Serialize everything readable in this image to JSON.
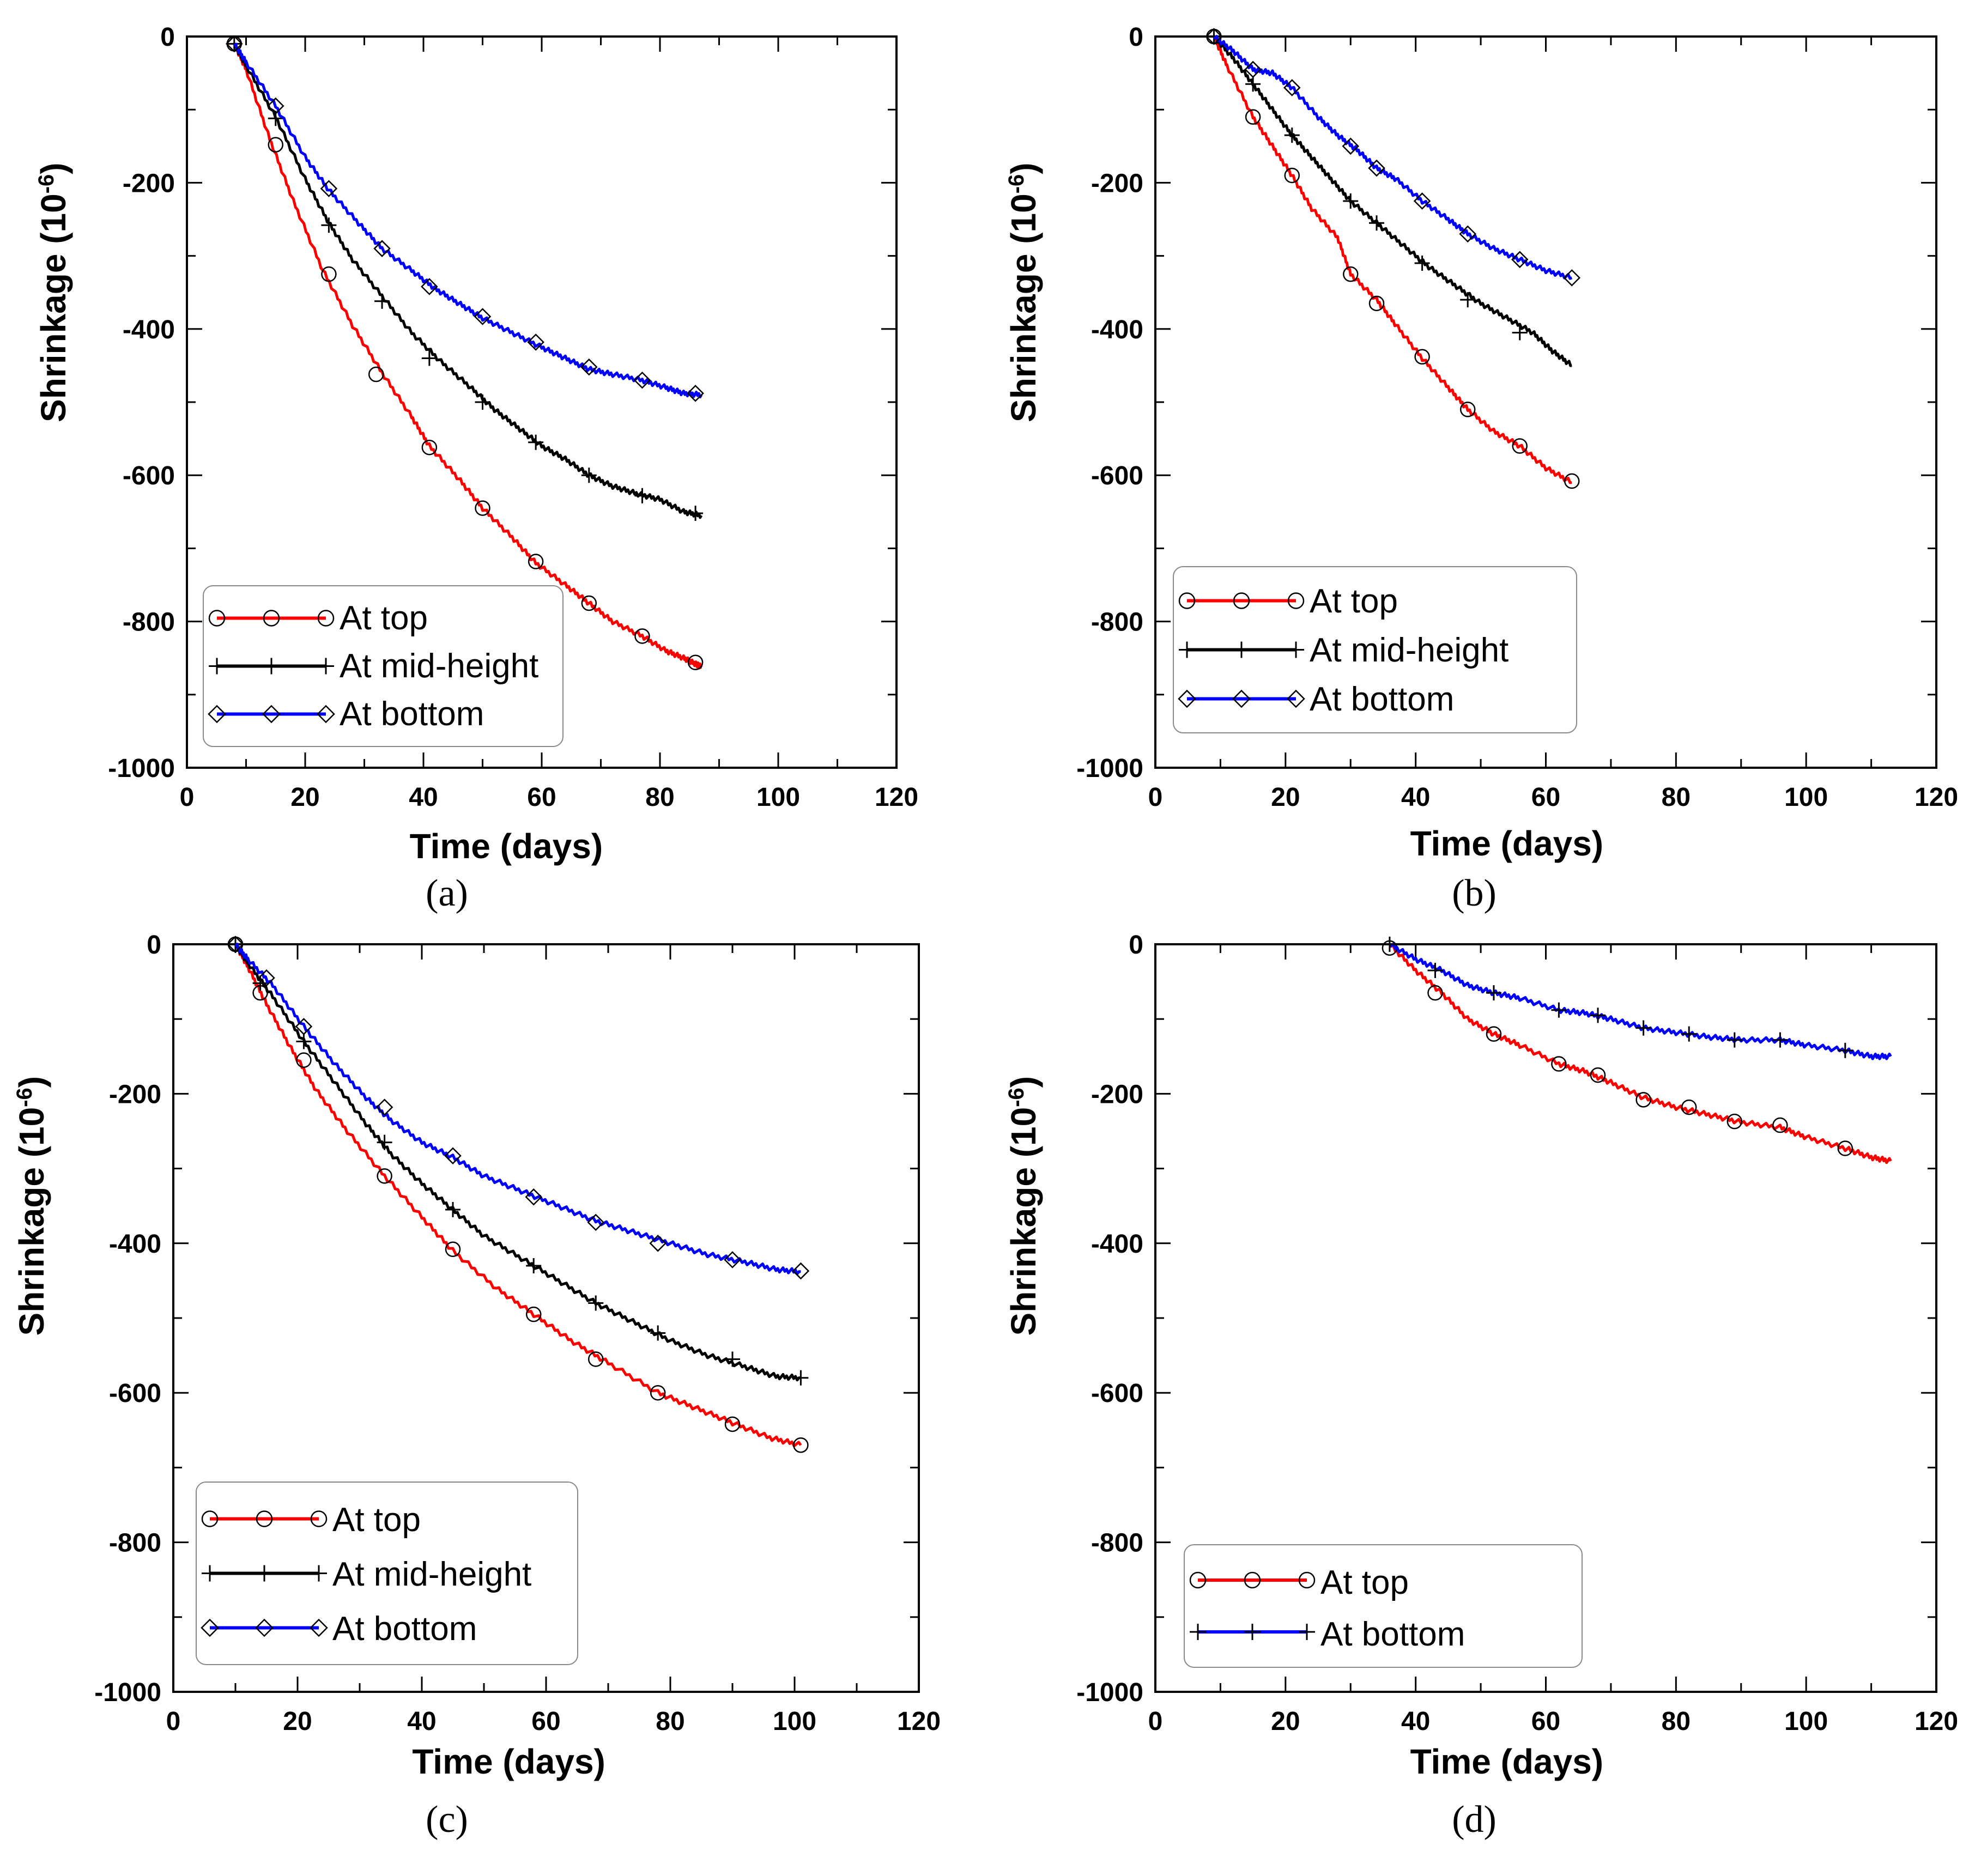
{
  "chart_data": [
    {
      "panel": "(a)",
      "type": "line",
      "xlabel": "Time (days)",
      "ylabel": "Shrinkage (10",
      "ylabel_sup": "-6",
      "ylabel_suffix": ")",
      "xlim": [
        0,
        120
      ],
      "ylim": [
        -1000,
        0
      ],
      "xticks": [
        0,
        20,
        40,
        60,
        80,
        100,
        120
      ],
      "yticks": [
        0,
        -200,
        -400,
        -600,
        -800,
        -1000
      ],
      "grid": false,
      "legend_position": "bottom-left",
      "series": [
        {
          "name": "At top",
          "color": "#ff0000",
          "marker": "circle",
          "x": [
            8,
            10,
            14,
            18,
            23,
            28,
            33,
            38,
            41,
            46,
            50,
            55,
            59,
            64,
            68,
            72,
            77,
            81,
            84,
            86,
            87
          ],
          "y": [
            -10,
            -45,
            -140,
            -225,
            -320,
            -395,
            -460,
            -520,
            -560,
            -605,
            -645,
            -685,
            -720,
            -750,
            -775,
            -800,
            -820,
            -840,
            -850,
            -858,
            -862
          ],
          "marker_x": [
            8,
            15,
            24,
            32,
            41,
            50,
            59,
            68,
            77,
            86
          ],
          "marker_y": [
            -10,
            -148,
            -325,
            -462,
            -562,
            -645,
            -718,
            -775,
            -820,
            -856
          ]
        },
        {
          "name": "At mid-height",
          "color": "#000000",
          "marker": "plus",
          "x": [
            8,
            10,
            15,
            20,
            24,
            28,
            33,
            38,
            43,
            48,
            52,
            56,
            60,
            64,
            68,
            72,
            76,
            80,
            84,
            87
          ],
          "y": [
            -10,
            -40,
            -110,
            -195,
            -255,
            -305,
            -355,
            -405,
            -445,
            -480,
            -510,
            -535,
            -560,
            -578,
            -600,
            -615,
            -625,
            -633,
            -650,
            -655
          ],
          "marker_x": [
            8,
            15,
            24,
            33,
            41,
            50,
            59,
            68,
            77,
            86
          ],
          "marker_y": [
            -10,
            -112,
            -258,
            -362,
            -440,
            -500,
            -555,
            -600,
            -628,
            -652
          ]
        },
        {
          "name": "At bottom",
          "color": "#0000ff",
          "marker": "diamond",
          "x": [
            8,
            10,
            15,
            20,
            24,
            29,
            33,
            38,
            42,
            46,
            50,
            55,
            60,
            64,
            68,
            72,
            77,
            81,
            84,
            87
          ],
          "y": [
            -10,
            -35,
            -95,
            -165,
            -210,
            -255,
            -290,
            -320,
            -345,
            -365,
            -385,
            -405,
            -425,
            -440,
            -455,
            -462,
            -470,
            -480,
            -488,
            -490
          ],
          "marker_x": [
            8,
            15,
            24,
            33,
            41,
            50,
            59,
            68,
            77,
            86
          ],
          "marker_y": [
            -10,
            -95,
            -208,
            -290,
            -342,
            -383,
            -418,
            -452,
            -470,
            -488
          ]
        }
      ]
    },
    {
      "panel": "(b)",
      "type": "line",
      "xlabel": "Time (days)",
      "ylabel": "Shrinkage (10",
      "ylabel_sup": "-6",
      "ylabel_suffix": ")",
      "xlim": [
        0,
        120
      ],
      "ylim": [
        -1000,
        0
      ],
      "xticks": [
        0,
        20,
        40,
        60,
        80,
        100,
        120
      ],
      "yticks": [
        0,
        -200,
        -400,
        -600,
        -800,
        -1000
      ],
      "grid": false,
      "legend_position": "bottom-left",
      "series": [
        {
          "name": "At top",
          "color": "#ff0000",
          "marker": "circle",
          "x": [
            9,
            11,
            15,
            18,
            21,
            24,
            28,
            30,
            34,
            37,
            41,
            45,
            48,
            52,
            56,
            60,
            64
          ],
          "y": [
            0,
            -40,
            -110,
            -150,
            -190,
            -235,
            -275,
            -325,
            -360,
            -395,
            -440,
            -480,
            -510,
            -540,
            -560,
            -590,
            -610
          ],
          "marker_x": [
            9,
            15,
            21,
            30,
            34,
            41,
            48,
            56,
            64
          ],
          "marker_y": [
            0,
            -110,
            -190,
            -325,
            -365,
            -438,
            -510,
            -560,
            -608
          ]
        },
        {
          "name": "At mid-height",
          "color": "#000000",
          "marker": "plus",
          "x": [
            9,
            12,
            15,
            18,
            21,
            24,
            27,
            30,
            34,
            38,
            42,
            46,
            50,
            54,
            58,
            61,
            64
          ],
          "y": [
            0,
            -30,
            -65,
            -100,
            -135,
            -165,
            -195,
            -225,
            -255,
            -285,
            -315,
            -340,
            -365,
            -385,
            -405,
            -430,
            -450
          ],
          "marker_x": [
            9,
            15,
            21,
            30,
            34,
            41,
            48,
            56
          ],
          "marker_y": [
            0,
            -65,
            -135,
            -225,
            -255,
            -310,
            -360,
            -405
          ]
        },
        {
          "name": "At bottom",
          "color": "#0000ff",
          "marker": "diamond",
          "x": [
            9,
            12,
            15,
            18,
            21,
            25,
            28,
            31,
            34,
            37,
            41,
            45,
            48,
            52,
            56,
            60,
            64
          ],
          "y": [
            0,
            -20,
            -45,
            -50,
            -70,
            -110,
            -135,
            -155,
            -180,
            -195,
            -225,
            -250,
            -270,
            -290,
            -305,
            -320,
            -330
          ],
          "marker_x": [
            9,
            15,
            21,
            30,
            34,
            41,
            48,
            56,
            64
          ],
          "marker_y": [
            0,
            -45,
            -70,
            -150,
            -180,
            -225,
            -270,
            -305,
            -330
          ]
        }
      ]
    },
    {
      "panel": "(c)",
      "type": "line",
      "xlabel": "Time (days)",
      "ylabel": "Shrinkage (10",
      "ylabel_sup": "-6",
      "ylabel_suffix": ")",
      "xlim": [
        0,
        120
      ],
      "ylim": [
        -1000,
        0
      ],
      "xticks": [
        0,
        20,
        40,
        60,
        80,
        100,
        120
      ],
      "yticks": [
        0,
        -200,
        -400,
        -600,
        -800,
        -1000
      ],
      "grid": false,
      "legend_position": "bottom-left",
      "series": [
        {
          "name": "At top",
          "color": "#ff0000",
          "marker": "circle",
          "x": [
            10,
            12,
            15,
            19,
            23,
            28,
            34,
            40,
            45,
            52,
            58,
            64,
            70,
            78,
            84,
            90,
            96,
            101
          ],
          "y": [
            0,
            -30,
            -80,
            -140,
            -195,
            -250,
            -310,
            -365,
            -410,
            -460,
            -495,
            -530,
            -560,
            -600,
            -620,
            -640,
            -660,
            -670
          ],
          "marker_x": [
            10,
            14,
            21,
            34,
            45,
            58,
            68,
            78,
            90,
            101
          ],
          "marker_y": [
            0,
            -65,
            -155,
            -310,
            -408,
            -495,
            -555,
            -600,
            -642,
            -670
          ]
        },
        {
          "name": "At mid-height",
          "color": "#000000",
          "marker": "plus",
          "x": [
            10,
            12,
            16,
            21,
            26,
            31,
            35,
            40,
            45,
            50,
            56,
            62,
            68,
            74,
            80,
            86,
            92,
            97,
            101
          ],
          "y": [
            0,
            -25,
            -70,
            -130,
            -185,
            -240,
            -280,
            -320,
            -355,
            -390,
            -420,
            -450,
            -480,
            -505,
            -530,
            -550,
            -565,
            -578,
            -580
          ],
          "marker_x": [
            10,
            14,
            21,
            34,
            45,
            58,
            68,
            78,
            90,
            101
          ],
          "marker_y": [
            0,
            -52,
            -130,
            -265,
            -355,
            -430,
            -480,
            -520,
            -555,
            -580
          ]
        },
        {
          "name": "At bottom",
          "color": "#0000ff",
          "marker": "diamond",
          "x": [
            10,
            12,
            16,
            21,
            26,
            31,
            35,
            40,
            45,
            50,
            56,
            62,
            68,
            74,
            80,
            86,
            92,
            97,
            101
          ],
          "y": [
            0,
            -20,
            -55,
            -110,
            -160,
            -205,
            -235,
            -265,
            -285,
            -310,
            -330,
            -350,
            -370,
            -385,
            -400,
            -415,
            -425,
            -435,
            -438
          ],
          "marker_x": [
            10,
            15,
            21,
            34,
            45,
            58,
            68,
            78,
            90,
            101
          ],
          "marker_y": [
            0,
            -45,
            -110,
            -218,
            -283,
            -338,
            -372,
            -400,
            -422,
            -437
          ]
        }
      ]
    },
    {
      "panel": "(d)",
      "type": "line",
      "xlabel": "Time (days)",
      "ylabel": "Shrinkage (10",
      "ylabel_sup": "-6",
      "ylabel_suffix": ")",
      "xlim": [
        0,
        120
      ],
      "ylim": [
        -1000,
        0
      ],
      "xticks": [
        0,
        20,
        40,
        60,
        80,
        100,
        120
      ],
      "yticks": [
        0,
        -200,
        -400,
        -600,
        -800,
        -1000
      ],
      "grid": false,
      "legend_position": "bottom-left",
      "series": [
        {
          "name": "At top",
          "color": "#ff0000",
          "marker": "circle",
          "x": [
            36,
            40,
            44,
            48,
            52,
            56,
            62,
            66,
            70,
            75,
            80,
            85,
            90,
            96,
            100,
            106,
            110,
            113
          ],
          "y": [
            0,
            -35,
            -65,
            -100,
            -120,
            -135,
            -160,
            -170,
            -185,
            -205,
            -218,
            -228,
            -238,
            -245,
            -258,
            -273,
            -285,
            -290
          ],
          "marker_x": [
            36,
            43,
            52,
            62,
            68,
            75,
            82,
            89,
            96,
            106
          ],
          "marker_y": [
            -5,
            -65,
            -120,
            -160,
            -175,
            -208,
            -218,
            -237,
            -242,
            -273
          ]
        },
        {
          "name": "At bottom",
          "color": "#0000ff",
          "marker": "plus",
          "x": [
            36,
            40,
            44,
            48,
            52,
            56,
            62,
            66,
            70,
            75,
            80,
            85,
            90,
            96,
            100,
            106,
            110,
            113
          ],
          "y": [
            0,
            -20,
            -35,
            -55,
            -65,
            -72,
            -88,
            -92,
            -100,
            -112,
            -118,
            -124,
            -128,
            -128,
            -135,
            -142,
            -150,
            -150
          ],
          "marker_x": [
            36,
            43,
            52,
            62,
            68,
            75,
            82,
            89,
            96,
            106
          ],
          "marker_y": [
            0,
            -35,
            -65,
            -88,
            -95,
            -112,
            -120,
            -128,
            -128,
            -142
          ]
        }
      ]
    }
  ]
}
